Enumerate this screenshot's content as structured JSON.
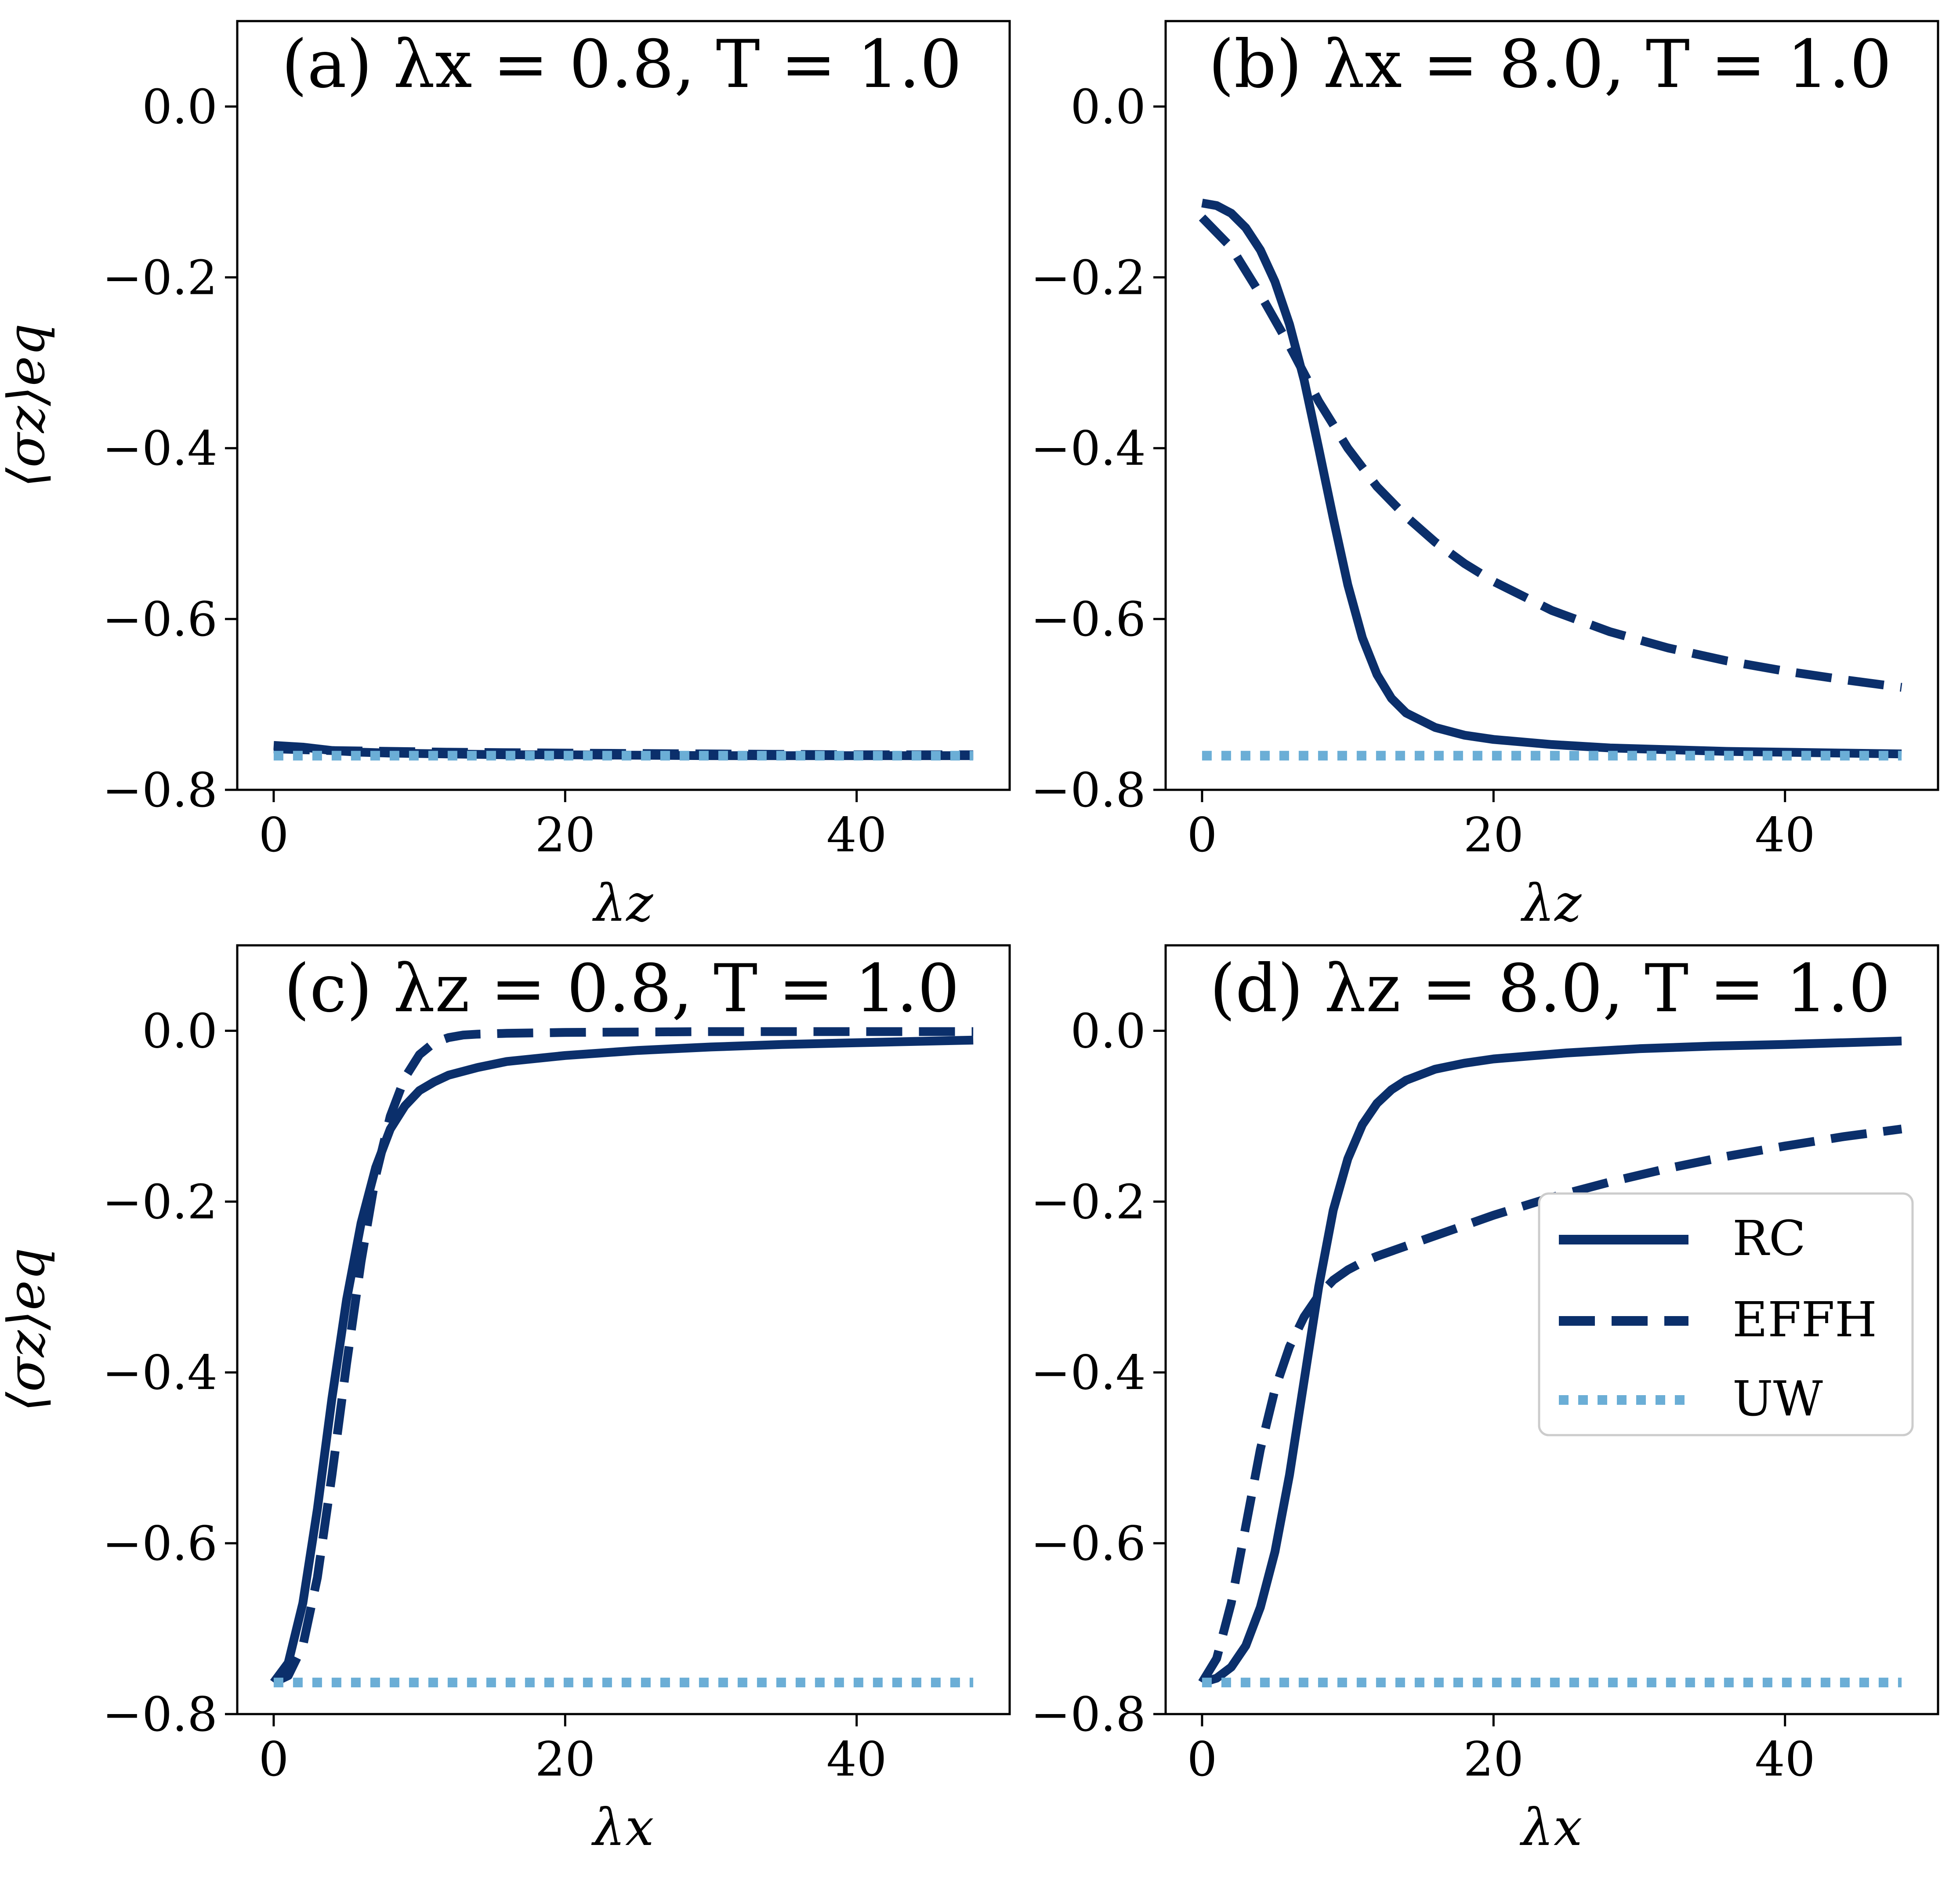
{
  "colors": {
    "rc": "#0b2f6b",
    "effh": "#0b2f6b",
    "uw": "#6baed6",
    "axis": "#000000",
    "background": "#ffffff"
  },
  "legend": {
    "placement": "inside panel d, right-center",
    "entries": [
      {
        "key": "rc",
        "label": "RC",
        "style": "solid"
      },
      {
        "key": "effh",
        "label": "EFFH",
        "style": "dashed"
      },
      {
        "key": "uw",
        "label": "UW",
        "style": "dotted"
      }
    ]
  },
  "chart_data": [
    {
      "panel": "a",
      "type": "line",
      "title": "(a) λx = 0.8, T = 1.0",
      "xlabel": "λz",
      "ylabel": "⟨σz⟩eq",
      "xlim": [
        -2.5,
        50.5
      ],
      "ylim": [
        -0.8,
        0.1
      ],
      "xticks": [
        0,
        20,
        40
      ],
      "xtick_labels": [
        "0",
        "20",
        "40"
      ],
      "yticks": [
        0.0,
        -0.2,
        -0.4,
        -0.6,
        -0.8
      ],
      "ytick_labels": [
        "0.0",
        "−0.2",
        "−0.4",
        "−0.6",
        "−0.8"
      ],
      "series": [
        {
          "key": "rc",
          "name": "RC",
          "x": [
            0,
            2,
            4,
            6,
            8,
            12,
            16,
            20,
            30,
            40,
            48
          ],
          "y": [
            -0.748,
            -0.75,
            -0.754,
            -0.756,
            -0.757,
            -0.758,
            -0.759,
            -0.759,
            -0.76,
            -0.76,
            -0.76
          ]
        },
        {
          "key": "effh",
          "name": "EFFH",
          "x": [
            0,
            4,
            8,
            12,
            20,
            30,
            40,
            48
          ],
          "y": [
            -0.752,
            -0.754,
            -0.755,
            -0.756,
            -0.757,
            -0.758,
            -0.759,
            -0.759
          ]
        },
        {
          "key": "uw",
          "name": "UW",
          "x": [
            0,
            48
          ],
          "y": [
            -0.76,
            -0.76
          ]
        }
      ]
    },
    {
      "panel": "b",
      "type": "line",
      "title": "(b) λx = 8.0, T = 1.0",
      "xlabel": "λz",
      "ylabel": "",
      "xlim": [
        -2.5,
        50.5
      ],
      "ylim": [
        -0.8,
        0.1
      ],
      "xticks": [
        0,
        20,
        40
      ],
      "xtick_labels": [
        "0",
        "20",
        "40"
      ],
      "yticks": [
        0.0,
        -0.2,
        -0.4,
        -0.6,
        -0.8
      ],
      "ytick_labels": [
        "0.0",
        "−0.2",
        "−0.4",
        "−0.6",
        "−0.8"
      ],
      "series": [
        {
          "key": "rc",
          "name": "RC",
          "x": [
            0,
            1,
            2,
            3,
            4,
            5,
            6,
            7,
            8,
            9,
            10,
            11,
            12,
            13,
            14,
            16,
            18,
            20,
            24,
            28,
            32,
            36,
            40,
            44,
            48
          ],
          "y": [
            -0.113,
            -0.116,
            -0.125,
            -0.142,
            -0.168,
            -0.205,
            -0.255,
            -0.32,
            -0.4,
            -0.482,
            -0.56,
            -0.622,
            -0.665,
            -0.693,
            -0.71,
            -0.727,
            -0.736,
            -0.741,
            -0.747,
            -0.751,
            -0.753,
            -0.755,
            -0.756,
            -0.757,
            -0.758
          ]
        },
        {
          "key": "effh",
          "name": "EFFH",
          "x": [
            0,
            2,
            4,
            6,
            8,
            10,
            12,
            14,
            16,
            18,
            20,
            24,
            28,
            32,
            36,
            40,
            44,
            48
          ],
          "y": [
            -0.13,
            -0.165,
            -0.22,
            -0.28,
            -0.345,
            -0.4,
            -0.445,
            -0.48,
            -0.51,
            -0.535,
            -0.556,
            -0.59,
            -0.615,
            -0.634,
            -0.649,
            -0.661,
            -0.671,
            -0.68
          ]
        },
        {
          "key": "uw",
          "name": "UW",
          "x": [
            0,
            48
          ],
          "y": [
            -0.76,
            -0.76
          ]
        }
      ]
    },
    {
      "panel": "c",
      "type": "line",
      "title": "(c) λz = 0.8, T = 1.0",
      "xlabel": "λx",
      "ylabel": "⟨σz⟩eq",
      "xlim": [
        -2.5,
        50.5
      ],
      "ylim": [
        -0.8,
        0.1
      ],
      "xticks": [
        0,
        20,
        40
      ],
      "xtick_labels": [
        "0",
        "20",
        "40"
      ],
      "yticks": [
        0.0,
        -0.2,
        -0.4,
        -0.6,
        -0.8
      ],
      "ytick_labels": [
        "0.0",
        "−0.2",
        "−0.4",
        "−0.6",
        "−0.8"
      ],
      "series": [
        {
          "key": "rc",
          "name": "RC",
          "x": [
            0,
            1,
            2,
            3,
            4,
            5,
            6,
            7,
            8,
            9,
            10,
            11,
            12,
            14,
            16,
            20,
            25,
            30,
            35,
            40,
            48
          ],
          "y": [
            -0.763,
            -0.74,
            -0.67,
            -0.56,
            -0.43,
            -0.315,
            -0.225,
            -0.16,
            -0.115,
            -0.088,
            -0.07,
            -0.06,
            -0.052,
            -0.043,
            -0.036,
            -0.029,
            -0.023,
            -0.019,
            -0.016,
            -0.014,
            -0.011
          ]
        },
        {
          "key": "effh",
          "name": "EFFH",
          "x": [
            0,
            1,
            2,
            3,
            4,
            5,
            6,
            7,
            8,
            9,
            10,
            11,
            12,
            13,
            14,
            16,
            20,
            30,
            40,
            48
          ],
          "y": [
            -0.763,
            -0.755,
            -0.72,
            -0.64,
            -0.52,
            -0.39,
            -0.27,
            -0.17,
            -0.1,
            -0.055,
            -0.028,
            -0.014,
            -0.008,
            -0.005,
            -0.004,
            -0.003,
            -0.002,
            -0.001,
            -0.001,
            -0.001
          ]
        },
        {
          "key": "uw",
          "name": "UW",
          "x": [
            0,
            48
          ],
          "y": [
            -0.763,
            -0.763
          ]
        }
      ]
    },
    {
      "panel": "d",
      "type": "line",
      "title": "(d) λz = 8.0, T = 1.0",
      "xlabel": "λx",
      "ylabel": "",
      "xlim": [
        -2.5,
        50.5
      ],
      "ylim": [
        -0.8,
        0.1
      ],
      "xticks": [
        0,
        20,
        40
      ],
      "xtick_labels": [
        "0",
        "20",
        "40"
      ],
      "yticks": [
        0.0,
        -0.2,
        -0.4,
        -0.6,
        -0.8
      ],
      "ytick_labels": [
        "0.0",
        "−0.2",
        "−0.4",
        "−0.6",
        "−0.8"
      ],
      "series": [
        {
          "key": "rc",
          "name": "RC",
          "x": [
            0,
            1,
            2,
            3,
            4,
            5,
            6,
            7,
            8,
            9,
            10,
            11,
            12,
            13,
            14,
            16,
            18,
            20,
            25,
            30,
            35,
            40,
            48
          ],
          "y": [
            -0.763,
            -0.758,
            -0.745,
            -0.72,
            -0.675,
            -0.61,
            -0.52,
            -0.41,
            -0.3,
            -0.21,
            -0.15,
            -0.11,
            -0.085,
            -0.069,
            -0.058,
            -0.045,
            -0.038,
            -0.033,
            -0.026,
            -0.021,
            -0.018,
            -0.016,
            -0.012
          ]
        },
        {
          "key": "effh",
          "name": "EFFH",
          "x": [
            0,
            1,
            2,
            3,
            4,
            5,
            6,
            7,
            8,
            9,
            10,
            11,
            12,
            14,
            16,
            18,
            20,
            24,
            28,
            32,
            36,
            40,
            44,
            48
          ],
          "y": [
            -0.763,
            -0.735,
            -0.67,
            -0.58,
            -0.49,
            -0.42,
            -0.37,
            -0.335,
            -0.31,
            -0.292,
            -0.28,
            -0.271,
            -0.264,
            -0.252,
            -0.24,
            -0.228,
            -0.216,
            -0.195,
            -0.177,
            -0.161,
            -0.147,
            -0.135,
            -0.124,
            -0.115
          ]
        },
        {
          "key": "uw",
          "name": "UW",
          "x": [
            0,
            48
          ],
          "y": [
            -0.763,
            -0.763
          ]
        }
      ]
    }
  ]
}
